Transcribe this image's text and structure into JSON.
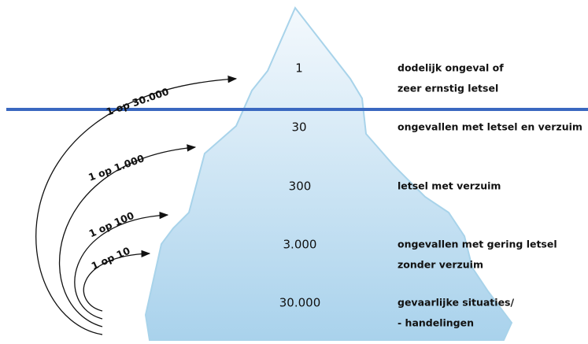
{
  "levels": [
    {
      "count": "1",
      "description": [
        "dodelijk ongeval of",
        "zeer ernstig letsel"
      ]
    },
    {
      "count": "30",
      "description": [
        "ongevallen met letsel en verzuim"
      ]
    },
    {
      "count": "300",
      "description": [
        "letsel met verzuim"
      ]
    },
    {
      "count": "3.000",
      "description": [
        "ongevallen met gering letsel",
        "zonder verzuim"
      ]
    },
    {
      "count": "30.000",
      "description": [
        "gevaarlijke situaties/",
        "- handelingen"
      ]
    }
  ],
  "ratios": [
    "1 op 30.000",
    "1 op 1.000",
    "1 op 100",
    "1 op 10"
  ]
}
